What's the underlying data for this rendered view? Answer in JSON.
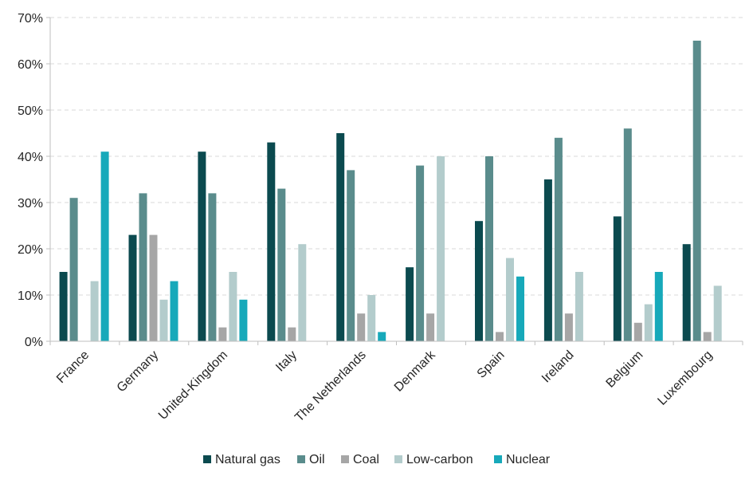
{
  "chart_data": {
    "type": "bar",
    "categories": [
      "France",
      "Germany",
      "United-Kingdom",
      "Italy",
      "The Netherlands",
      "Denmark",
      "Spain",
      "Ireland",
      "Belgium",
      "Luxembourg"
    ],
    "series": [
      {
        "name": "Natural gas",
        "color": "#0b4a4f",
        "values": [
          15,
          23,
          41,
          43,
          45,
          16,
          26,
          35,
          27,
          21
        ]
      },
      {
        "name": "Oil",
        "color": "#5a8c8c",
        "values": [
          31,
          32,
          32,
          33,
          37,
          38,
          40,
          44,
          46,
          65
        ]
      },
      {
        "name": "Coal",
        "color": "#a6a6a6",
        "values": [
          0,
          23,
          3,
          3,
          6,
          6,
          2,
          6,
          4,
          2
        ]
      },
      {
        "name": "Low-carbon",
        "color": "#b3cccc",
        "values": [
          13,
          9,
          15,
          21,
          10,
          40,
          18,
          15,
          8,
          12
        ]
      },
      {
        "name": "Nuclear",
        "color": "#17a9ba",
        "values": [
          41,
          13,
          9,
          0,
          2,
          0,
          14,
          0,
          15,
          0
        ]
      }
    ],
    "yticks": [
      "0%",
      "10%",
      "20%",
      "30%",
      "40%",
      "50%",
      "60%",
      "70%"
    ],
    "ylim": [
      0,
      70
    ],
    "grid": true,
    "legend_position": "bottom",
    "title": "",
    "xlabel": "",
    "ylabel": ""
  }
}
